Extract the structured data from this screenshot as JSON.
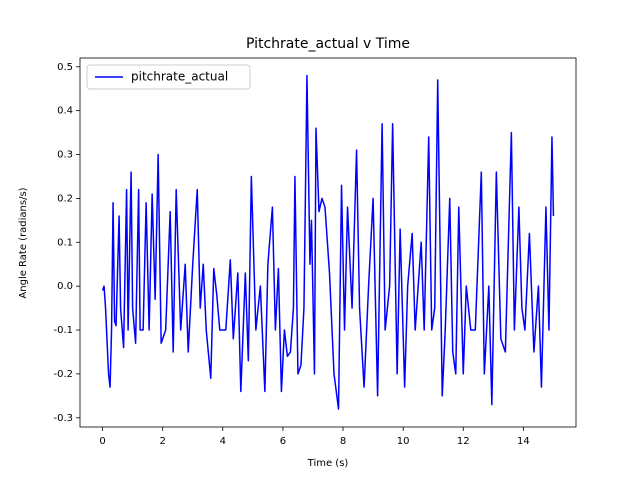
{
  "chart_data": {
    "type": "line",
    "title": "Pitchrate_actual v Time",
    "xlabel": "Time (s)",
    "ylabel": "Angle Rate (radians/s)",
    "x": [
      0.0,
      0.05,
      0.1,
      0.2,
      0.25,
      0.3,
      0.35,
      0.4,
      0.45,
      0.55,
      0.6,
      0.7,
      0.8,
      0.85,
      0.95,
      1.0,
      1.1,
      1.2,
      1.25,
      1.35,
      1.45,
      1.55,
      1.65,
      1.75,
      1.85,
      1.95,
      2.1,
      2.25,
      2.35,
      2.45,
      2.6,
      2.75,
      2.85,
      3.0,
      3.15,
      3.25,
      3.35,
      3.45,
      3.6,
      3.7,
      3.8,
      3.9,
      4.1,
      4.25,
      4.35,
      4.5,
      4.6,
      4.75,
      4.85,
      4.95,
      5.1,
      5.25,
      5.4,
      5.5,
      5.65,
      5.75,
      5.85,
      5.95,
      6.05,
      6.15,
      6.25,
      6.35,
      6.4,
      6.5,
      6.6,
      6.7,
      6.8,
      6.9,
      6.95,
      7.05,
      7.1,
      7.2,
      7.3,
      7.4,
      7.55,
      7.7,
      7.85,
      7.95,
      8.05,
      8.15,
      8.3,
      8.45,
      8.55,
      8.7,
      8.85,
      9.0,
      9.15,
      9.3,
      9.4,
      9.55,
      9.65,
      9.8,
      9.9,
      10.05,
      10.15,
      10.3,
      10.4,
      10.6,
      10.7,
      10.85,
      10.95,
      11.05,
      11.15,
      11.3,
      11.4,
      11.55,
      11.65,
      11.75,
      11.85,
      12.0,
      12.1,
      12.25,
      12.4,
      12.6,
      12.7,
      12.85,
      12.95,
      13.1,
      13.25,
      13.4,
      13.6,
      13.7,
      13.85,
      13.95,
      14.05,
      14.2,
      14.35,
      14.5,
      14.6,
      14.75,
      14.85,
      14.95,
      15.0
    ],
    "series": [
      {
        "name": "pitchrate_actual",
        "color": "#0000ff",
        "values": [
          -0.01,
          0.0,
          -0.05,
          -0.2,
          -0.23,
          -0.1,
          0.19,
          -0.08,
          -0.09,
          0.16,
          -0.05,
          -0.14,
          0.22,
          -0.1,
          0.26,
          -0.05,
          -0.13,
          0.22,
          -0.1,
          -0.1,
          0.19,
          -0.1,
          0.21,
          -0.03,
          0.3,
          -0.13,
          -0.1,
          0.17,
          -0.15,
          0.22,
          -0.1,
          0.05,
          -0.15,
          0.05,
          0.22,
          -0.05,
          0.05,
          -0.1,
          -0.21,
          0.04,
          -0.02,
          -0.1,
          -0.1,
          0.06,
          -0.12,
          0.03,
          -0.24,
          0.03,
          -0.17,
          0.25,
          -0.1,
          0.0,
          -0.24,
          0.05,
          0.18,
          -0.1,
          0.04,
          -0.24,
          -0.1,
          -0.16,
          -0.15,
          -0.05,
          0.25,
          -0.2,
          -0.18,
          -0.05,
          0.48,
          0.05,
          0.15,
          -0.2,
          0.36,
          0.17,
          0.2,
          0.18,
          0.03,
          -0.2,
          -0.28,
          0.23,
          -0.1,
          0.18,
          -0.05,
          0.31,
          -0.05,
          -0.23,
          0.0,
          0.2,
          -0.25,
          0.37,
          -0.1,
          0.0,
          0.37,
          -0.2,
          0.13,
          -0.23,
          0.0,
          0.12,
          -0.1,
          0.1,
          -0.1,
          0.34,
          -0.1,
          -0.05,
          0.47,
          -0.25,
          -0.1,
          0.2,
          -0.15,
          -0.2,
          0.18,
          -0.2,
          0.0,
          -0.1,
          -0.1,
          0.26,
          -0.2,
          0.0,
          -0.27,
          0.26,
          -0.12,
          -0.15,
          0.35,
          -0.1,
          0.18,
          -0.05,
          -0.1,
          0.12,
          -0.15,
          0.0,
          -0.23,
          0.18,
          -0.1,
          0.34,
          0.16
        ]
      }
    ],
    "xlim": [
      -0.75,
      15.75
    ],
    "ylim": [
      -0.321,
      0.52
    ],
    "xticks": [
      0,
      2,
      4,
      6,
      8,
      10,
      12,
      14
    ],
    "yticks": [
      -0.3,
      -0.2,
      -0.1,
      0.0,
      0.1,
      0.2,
      0.3,
      0.4,
      0.5
    ],
    "legend": "upper left"
  }
}
